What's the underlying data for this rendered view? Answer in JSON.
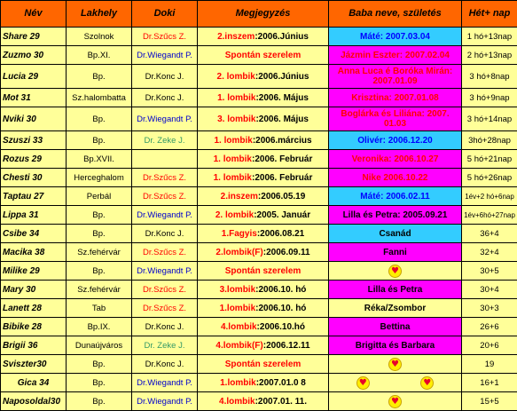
{
  "headers": {
    "nev": "Név",
    "lakhely": "Lakhely",
    "doki": "Doki",
    "megjegyzes": "Megjegyzés",
    "baba": "Baba neve, születés",
    "het": "Hét+ nap"
  },
  "colors": {
    "header_bg": "#ff6600",
    "cell_bg": "#ffff99",
    "cyan_bg": "#33ccff",
    "magenta_bg": "#ff00ff",
    "doctor_szucs": "#ff0000",
    "doctor_wiegandt": "#0000cc",
    "doctor_zeke": "#339966"
  },
  "rows": [
    {
      "nev": "Share 29",
      "lakhely": "Szolnok",
      "doki": "Dr.Szűcs Z.",
      "meg_a": "2.inszem",
      "meg_b": ":2006.Június",
      "baba": "Máté: 2007.03.04",
      "het": "1 hó+13nap"
    },
    {
      "nev": "Zuzmo 30",
      "lakhely": "Bp.XI.",
      "doki": "Dr.Wiegandt P.",
      "meg_a": "Spontán szerelem",
      "meg_b": "",
      "baba": "Jázmin Eszter: 2007.02.04",
      "het": "2 hó+13nap"
    },
    {
      "nev": "Lucia 29",
      "lakhely": "Bp.",
      "doki": "Dr.Konc J.",
      "meg_a": "2. lombik",
      "meg_b": ":2006.Június",
      "baba": "Anna Luca é Boróka Mirán: 2007.01.09",
      "het": "3 hó+8nap"
    },
    {
      "nev": "Mot 31",
      "lakhely": "Sz.halombatta",
      "doki": "Dr.Konc J.",
      "meg_a": "1. lombik",
      "meg_b": ":2006. Május",
      "baba": "Krisztina: 2007.01.08",
      "het": "3 hó+9nap"
    },
    {
      "nev": "Nviki 30",
      "lakhely": "Bp.",
      "doki": "Dr.Wiegandt P.",
      "meg_a": "3. lombik",
      "meg_b": ":2006. Május",
      "baba": "Boglárka és Liliána: 2007. 01.03",
      "het": "3 hó+14nap"
    },
    {
      "nev": "Szuszi 33",
      "lakhely": "Bp.",
      "doki": "Dr. Zeke J.",
      "meg_a": "1. lombik",
      "meg_b": ":2006.március",
      "baba": "Olivér: 2006.12.20",
      "het": "3hó+28nap"
    },
    {
      "nev": "Rozus 29",
      "lakhely": "Bp.XVII.",
      "doki": "",
      "meg_a": "1. lombik",
      "meg_b": ":2006. Február",
      "baba": "Veronika: 2006.10.27",
      "het": "5 hó+21nap"
    },
    {
      "nev": "Chesti 30",
      "lakhely": "Herceghalom",
      "doki": "Dr.Szűcs Z.",
      "meg_a": "1. lombik",
      "meg_b": ":2006. Február",
      "baba": "Nike 2006.10.22",
      "het": "5 hó+26nap"
    },
    {
      "nev": "Taptau 27",
      "lakhely": "Perbál",
      "doki": "Dr.Szűcs Z.",
      "meg_a": "2.inszem",
      "meg_b": ":2006.05.19",
      "baba": "Máté: 2006.02.11",
      "het": "1év+2 hó+6nap"
    },
    {
      "nev": "Lippa 31",
      "lakhely": "Bp.",
      "doki": "Dr.Wiegandt P.",
      "meg_a": "2. lombik",
      "meg_b": ":2005. Január",
      "baba": "Lilla és Petra: 2005.09.21",
      "het": "1év+6hó+27nap"
    },
    {
      "nev": "Csibe 34",
      "lakhely": "Bp.",
      "doki": "Dr.Konc J.",
      "meg_a": "1.Fagyis",
      "meg_b": ":2006.08.21",
      "baba": "Csanád",
      "het": "36+4"
    },
    {
      "nev": "Macika 38",
      "lakhely": "Sz.fehérvár",
      "doki": "Dr.Szűcs Z.",
      "meg_a": "2.lombik(F)",
      "meg_b": ":2006.09.11",
      "baba": "Fanni",
      "het": "32+4"
    },
    {
      "nev": "Milike 29",
      "lakhely": "Bp.",
      "doki": "Dr.Wiegandt P.",
      "meg_a": "Spontán szerelem",
      "meg_b": "",
      "baba": "",
      "het": "30+5"
    },
    {
      "nev": "Mary 30",
      "lakhely": "Sz.fehérvár",
      "doki": "Dr.Szűcs Z.",
      "meg_a": "3.lombik",
      "meg_b": ":2006.10. hó",
      "baba": "Lilla és Petra",
      "het": "30+4"
    },
    {
      "nev": "Lanett 28",
      "lakhely": "Tab",
      "doki": "Dr.Szűcs Z.",
      "meg_a": "1.lombik",
      "meg_b": ":2006.10. hó",
      "baba": "Réka/Zsombor",
      "het": "30+3"
    },
    {
      "nev": "Bibike 28",
      "lakhely": "Bp.IX.",
      "doki": "Dr.Konc J.",
      "meg_a": "4.lombik",
      "meg_b": ":2006.10.hó",
      "baba": "Bettina",
      "het": "26+6"
    },
    {
      "nev": "Brigii 36",
      "lakhely": "Dunaújváros",
      "doki": "Dr. Zeke J.",
      "meg_a": "4.lombik(F)",
      "meg_b": ":2006.12.11",
      "baba": "Brigitta és Barbara",
      "het": "20+6"
    },
    {
      "nev": "Sviszter30",
      "lakhely": "Bp.",
      "doki": "Dr.Konc J.",
      "meg_a": "Spontán szerelem",
      "meg_b": "",
      "baba": "",
      "het": "19"
    },
    {
      "nev": "Gica  34",
      "lakhely": "Bp.",
      "doki": "Dr.Wiegandt P.",
      "meg_a": "1.lombik",
      "meg_b": ":2007.01.0 8",
      "baba": "",
      "het": "16+1"
    },
    {
      "nev": "Naposoldal30",
      "lakhely": "Bp.",
      "doki": "Dr.Wiegandt P.",
      "meg_a": "4.lombik",
      "meg_b": ":2007.01. 11.",
      "baba": "",
      "het": "15+5"
    }
  ]
}
